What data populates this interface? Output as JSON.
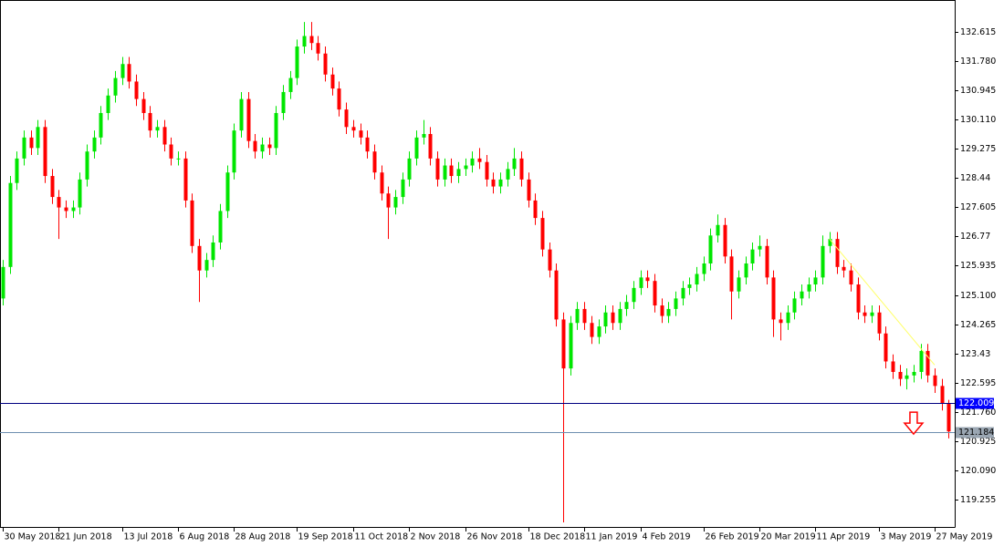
{
  "chart_data": {
    "type": "candlestick",
    "categories": [
      "30 May 2018",
      null,
      null,
      null,
      null,
      null,
      null,
      null,
      "21 Jun 2018",
      null,
      null,
      null,
      null,
      null,
      null,
      null,
      null,
      "13 Jul 2018",
      null,
      null,
      null,
      null,
      null,
      null,
      null,
      "6 Aug 2018",
      null,
      null,
      null,
      null,
      null,
      null,
      null,
      "28 Aug 2018",
      null,
      null,
      null,
      null,
      null,
      null,
      null,
      null,
      "19 Sep 2018",
      null,
      null,
      null,
      null,
      null,
      null,
      null,
      "11 Oct 2018",
      null,
      null,
      null,
      null,
      null,
      null,
      null,
      "2 Nov 2018",
      null,
      null,
      null,
      null,
      null,
      null,
      null,
      "26 Nov 2018",
      null,
      null,
      null,
      null,
      null,
      null,
      null,
      null,
      "18 Dec 2018",
      null,
      null,
      null,
      null,
      null,
      null,
      null,
      "11 Jan 2019",
      null,
      null,
      null,
      null,
      null,
      null,
      null,
      "4 Feb 2019",
      null,
      null,
      null,
      null,
      null,
      null,
      null,
      null,
      "26 Feb 2019",
      null,
      null,
      null,
      null,
      null,
      null,
      null,
      "20 Mar 2019",
      null,
      null,
      null,
      null,
      null,
      null,
      null,
      "11 Apr 2019",
      null,
      null,
      null,
      null,
      null,
      null,
      null,
      null,
      "3 May 2019",
      null,
      null,
      null,
      null,
      null,
      null,
      null,
      "27 May 2019",
      null,
      null
    ],
    "open": [
      125.0,
      125.9,
      128.3,
      129.0,
      129.6,
      129.3,
      129.9,
      128.5,
      127.9,
      127.6,
      127.5,
      127.6,
      128.4,
      129.2,
      129.6,
      130.3,
      130.8,
      131.3,
      131.7,
      131.2,
      130.7,
      130.3,
      129.8,
      129.9,
      129.4,
      129.0,
      129.0,
      127.8,
      126.5,
      125.8,
      126.1,
      126.6,
      127.5,
      128.6,
      129.8,
      130.7,
      129.5,
      129.2,
      129.4,
      129.3,
      130.3,
      130.9,
      131.3,
      132.2,
      132.5,
      132.3,
      132.0,
      131.4,
      131.0,
      130.4,
      129.9,
      129.8,
      129.6,
      129.2,
      128.6,
      128.0,
      127.6,
      127.9,
      128.4,
      129.0,
      129.6,
      129.7,
      129.0,
      128.4,
      128.8,
      128.5,
      128.7,
      128.8,
      129.0,
      128.9,
      128.4,
      128.2,
      128.4,
      128.7,
      129.0,
      128.4,
      127.8,
      127.3,
      126.4,
      125.8,
      124.4,
      123.0,
      124.3,
      124.7,
      124.3,
      123.9,
      124.2,
      124.6,
      124.3,
      124.7,
      124.9,
      125.3,
      125.6,
      125.5,
      124.8,
      124.5,
      124.7,
      125.0,
      125.3,
      125.4,
      125.7,
      126.0,
      126.8,
      127.1,
      126.2,
      125.2,
      125.6,
      126.0,
      126.4,
      126.5,
      125.6,
      124.4,
      124.3,
      124.6,
      125.0,
      125.2,
      125.4,
      125.6,
      126.5,
      126.7,
      125.9,
      125.8,
      125.4,
      124.6,
      124.5,
      124.6,
      124.0,
      123.2,
      122.9,
      122.7,
      122.8,
      122.9,
      123.5,
      122.8,
      122.5,
      122.0
    ],
    "high": [
      126.1,
      128.5,
      129.2,
      129.8,
      129.8,
      130.1,
      130.1,
      128.7,
      128.1,
      127.8,
      127.8,
      128.6,
      129.4,
      129.8,
      130.5,
      131.0,
      131.5,
      131.9,
      131.9,
      131.4,
      130.9,
      130.5,
      130.1,
      130.1,
      129.6,
      129.2,
      129.2,
      128.0,
      126.7,
      126.3,
      126.8,
      127.7,
      128.8,
      130.0,
      130.9,
      130.9,
      129.7,
      129.6,
      129.6,
      130.5,
      131.1,
      131.5,
      132.4,
      132.9,
      132.9,
      132.5,
      132.2,
      131.6,
      131.2,
      130.6,
      130.1,
      130.0,
      129.8,
      129.4,
      128.8,
      128.2,
      128.1,
      128.6,
      129.2,
      129.8,
      130.1,
      129.9,
      129.2,
      129.0,
      129.0,
      128.9,
      129.0,
      129.2,
      129.3,
      129.1,
      128.6,
      128.6,
      128.9,
      129.3,
      129.2,
      128.6,
      128.0,
      127.5,
      126.6,
      126.0,
      124.6,
      124.5,
      124.9,
      124.9,
      124.5,
      124.4,
      124.8,
      124.8,
      124.9,
      125.1,
      125.5,
      125.8,
      125.8,
      125.7,
      125.0,
      124.9,
      125.2,
      125.5,
      125.6,
      125.9,
      126.2,
      127.0,
      127.4,
      127.3,
      126.4,
      125.8,
      126.2,
      126.6,
      126.8,
      126.7,
      125.8,
      124.6,
      124.8,
      125.2,
      125.4,
      125.6,
      125.8,
      126.8,
      126.9,
      126.9,
      126.1,
      126.0,
      125.6,
      124.8,
      124.8,
      124.8,
      124.2,
      123.4,
      123.1,
      123.0,
      123.1,
      123.7,
      123.7,
      123.0,
      122.7,
      122.1
    ],
    "low": [
      124.8,
      125.7,
      128.1,
      128.8,
      129.1,
      129.1,
      128.3,
      127.7,
      126.7,
      127.3,
      127.3,
      127.4,
      128.2,
      129.0,
      129.4,
      130.1,
      130.6,
      131.1,
      131.0,
      130.5,
      130.1,
      129.6,
      129.6,
      129.2,
      128.8,
      128.8,
      127.6,
      126.3,
      124.9,
      125.6,
      125.9,
      126.4,
      127.3,
      128.4,
      129.6,
      129.3,
      129.0,
      129.0,
      129.1,
      129.1,
      130.1,
      130.7,
      131.1,
      132.0,
      132.1,
      131.8,
      131.2,
      130.8,
      130.2,
      129.7,
      129.6,
      129.4,
      129.0,
      128.4,
      127.8,
      126.7,
      127.4,
      127.7,
      128.2,
      128.8,
      129.4,
      128.8,
      128.2,
      128.2,
      128.3,
      128.3,
      128.5,
      128.6,
      128.7,
      128.2,
      128.0,
      128.0,
      128.2,
      128.5,
      128.2,
      127.6,
      127.1,
      126.2,
      125.6,
      124.2,
      118.6,
      122.8,
      124.1,
      124.1,
      123.7,
      123.7,
      124.0,
      124.1,
      124.1,
      124.5,
      124.7,
      125.1,
      125.3,
      124.6,
      124.3,
      124.3,
      124.5,
      124.8,
      125.1,
      125.2,
      125.5,
      125.8,
      126.6,
      126.0,
      124.4,
      125.0,
      125.4,
      125.8,
      126.2,
      125.4,
      123.9,
      123.8,
      124.1,
      124.4,
      124.8,
      125.0,
      125.2,
      125.4,
      126.3,
      125.7,
      125.6,
      125.2,
      124.4,
      124.3,
      124.3,
      123.8,
      123.0,
      122.7,
      122.5,
      122.4,
      122.6,
      122.7,
      122.6,
      122.3,
      121.8,
      121.0
    ],
    "close": [
      125.9,
      128.3,
      129.0,
      129.6,
      129.3,
      129.9,
      128.5,
      127.9,
      127.6,
      127.5,
      127.6,
      128.4,
      129.2,
      129.6,
      130.3,
      130.8,
      131.3,
      131.7,
      131.2,
      130.7,
      130.3,
      129.8,
      129.9,
      129.4,
      129.0,
      129.0,
      127.8,
      126.5,
      125.8,
      126.1,
      126.6,
      127.5,
      128.6,
      129.8,
      130.7,
      129.5,
      129.2,
      129.4,
      129.3,
      130.3,
      130.9,
      131.3,
      132.2,
      132.5,
      132.3,
      132.0,
      131.4,
      131.0,
      130.4,
      129.9,
      129.8,
      129.6,
      129.2,
      128.6,
      128.0,
      127.6,
      127.9,
      128.4,
      129.0,
      129.6,
      129.7,
      129.0,
      128.4,
      128.8,
      128.5,
      128.7,
      128.8,
      129.0,
      128.9,
      128.4,
      128.2,
      128.4,
      128.7,
      129.0,
      128.4,
      127.8,
      127.3,
      126.4,
      125.8,
      124.4,
      123.0,
      124.3,
      124.7,
      124.3,
      123.9,
      124.2,
      124.6,
      124.3,
      124.7,
      124.9,
      125.3,
      125.6,
      125.5,
      124.8,
      124.5,
      124.7,
      125.0,
      125.3,
      125.4,
      125.7,
      126.0,
      126.8,
      127.1,
      126.2,
      125.2,
      125.6,
      126.0,
      126.4,
      126.5,
      125.6,
      124.4,
      124.3,
      124.6,
      125.0,
      125.2,
      125.4,
      125.6,
      126.5,
      126.7,
      125.9,
      125.8,
      125.4,
      124.6,
      124.5,
      124.6,
      124.0,
      123.2,
      122.9,
      122.7,
      122.8,
      122.9,
      123.5,
      122.8,
      122.5,
      122.0,
      121.2
    ],
    "up_color": "#00e600",
    "down_color": "#ff0000",
    "ylim": [
      118.47,
      133.53
    ],
    "yticks": [
      132.615,
      {
        "value": 131.78,
        "label": "131.780"
      },
      130.945,
      {
        "value": 130.11,
        "label": "130.110"
      },
      129.275,
      128.44,
      127.605,
      126.77,
      125.935,
      {
        "value": 125.1,
        "label": "125.100"
      },
      124.265,
      123.43,
      122.595,
      {
        "value": 121.76,
        "label": "121.760"
      },
      120.925,
      {
        "value": 120.09,
        "label": "120.090"
      },
      119.255
    ],
    "levels": [
      {
        "value": 122.009,
        "color": "#000080",
        "label_color": "#0000ff",
        "text_color": "#ffffff"
      },
      {
        "value": 121.184,
        "color": "#6f8fb0",
        "label_color": "#9aa6b2",
        "text_color": "#000000"
      }
    ],
    "trendline": {
      "x": [
        118,
        133
      ],
      "values": [
        126.7,
        123.1
      ],
      "color": "#ffff66"
    },
    "arrow": {
      "x": 130,
      "value": 121.75,
      "color": "#ff0000"
    }
  }
}
